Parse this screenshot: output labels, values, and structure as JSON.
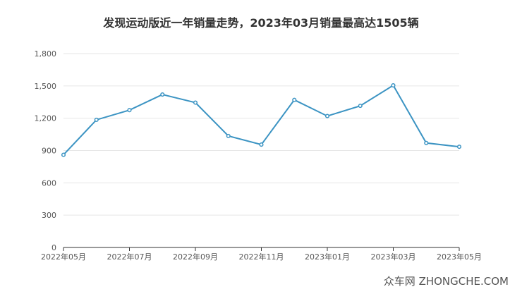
{
  "title": "发现运动版近一年销量走势，2023年03月销量最高达1505辆",
  "watermark": "众车网 ZHONGCHE.COM",
  "colors": {
    "series": "#3c94c3",
    "grid": "#e6e6e6",
    "axis": "#333333"
  },
  "chart_data": {
    "type": "line",
    "title": "发现运动版近一年销量走势，2023年03月销量最高达1505辆",
    "xlabel": "",
    "ylabel": "",
    "ylim": [
      0,
      1800
    ],
    "yticks": [
      "0",
      "300",
      "600",
      "900",
      "1,200",
      "1,500",
      "1,800"
    ],
    "xticks": [
      "2022年05月",
      "2022年07月",
      "2022年09月",
      "2022年11月",
      "2023年01月",
      "2023年03月",
      "2023年05月"
    ],
    "x": [
      "2022年05月",
      "2022年06月",
      "2022年07月",
      "2022年08月",
      "2022年09月",
      "2022年10月",
      "2022年11月",
      "2022年12月",
      "2023年01月",
      "2023年02月",
      "2023年03月",
      "2023年04月",
      "2023年05月"
    ],
    "series": [
      {
        "values": [
          860,
          1185,
          1275,
          1420,
          1345,
          1035,
          955,
          1370,
          1220,
          1315,
          1505,
          970,
          935
        ]
      }
    ],
    "grid": true,
    "legend": "none"
  }
}
